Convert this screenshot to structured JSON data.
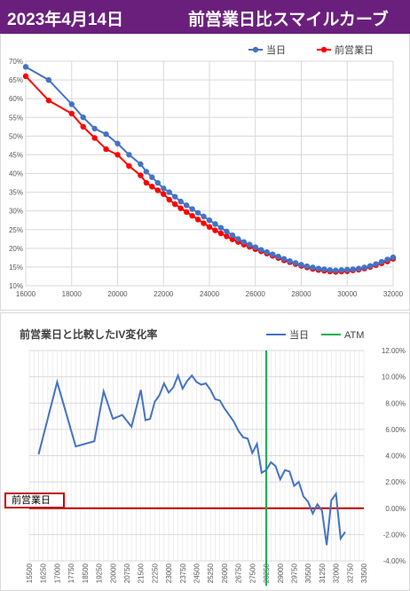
{
  "header": {
    "date": "2023年4月14日",
    "title": "前営業日比スマイルカーブ"
  },
  "colors": {
    "header_bg": "#6b1f7c",
    "today": "#4472c4",
    "prev": "#ff0000",
    "atm": "#00b050",
    "ref": "#c00000"
  },
  "chart_data": [
    {
      "type": "line",
      "title": "",
      "xlim": [
        16000,
        32000
      ],
      "ylim": [
        10,
        70
      ],
      "x_ticks": [
        16000,
        18000,
        20000,
        22000,
        24000,
        26000,
        28000,
        30000,
        32000
      ],
      "x_tick_labels": [
        "16000",
        "18000",
        "20000",
        "22000",
        "24000",
        "26000",
        "28000",
        "30000",
        "32000"
      ],
      "y_ticks": [
        10,
        15,
        20,
        25,
        30,
        35,
        40,
        45,
        50,
        55,
        60,
        65,
        70
      ],
      "y_tick_labels": [
        "10%",
        "15%",
        "20%",
        "25%",
        "30%",
        "35%",
        "40%",
        "45%",
        "50%",
        "55%",
        "60%",
        "65%",
        "70%"
      ],
      "legend": "top-right",
      "grid": true,
      "series": [
        {
          "name": "当日",
          "x": [
            16000,
            17000,
            18000,
            18500,
            19000,
            19500,
            20000,
            20500,
            21000,
            21250,
            21500,
            21750,
            22000,
            22250,
            22500,
            22750,
            23000,
            23250,
            23500,
            23750,
            24000,
            24250,
            24500,
            24750,
            25000,
            25250,
            25500,
            25750,
            26000,
            26250,
            26500,
            26750,
            27000,
            27250,
            27500,
            27750,
            28000,
            28250,
            28500,
            28750,
            29000,
            29250,
            29500,
            29750,
            30000,
            30250,
            30500,
            30750,
            31000,
            31250,
            31500,
            31750,
            32000
          ],
          "values": [
            68.5,
            65,
            58.5,
            55,
            52,
            50.5,
            48,
            45,
            42.5,
            40.5,
            39,
            37.5,
            36,
            35,
            33.8,
            32.5,
            31.5,
            30.5,
            29.5,
            28.5,
            27.5,
            26.5,
            25.5,
            24.5,
            23.5,
            22.5,
            21.7,
            21,
            20.3,
            19.6,
            19,
            18.4,
            17.8,
            17.2,
            16.6,
            16.1,
            15.6,
            15.2,
            14.9,
            14.6,
            14.4,
            14.2,
            14.1,
            14.2,
            14.3,
            14.4,
            14.6,
            14.9,
            15.3,
            15.8,
            16.4,
            17,
            17.6
          ]
        },
        {
          "name": "前営業日",
          "x": [
            16000,
            17000,
            18000,
            18500,
            19000,
            19500,
            20000,
            20500,
            21000,
            21250,
            21500,
            21750,
            22000,
            22250,
            22500,
            22750,
            23000,
            23250,
            23500,
            23750,
            24000,
            24250,
            24500,
            24750,
            25000,
            25250,
            25500,
            25750,
            26000,
            26250,
            26500,
            26750,
            27000,
            27250,
            27500,
            27750,
            28000,
            28250,
            28500,
            28750,
            29000,
            29250,
            29500,
            29750,
            30000,
            30250,
            30500,
            30750,
            31000,
            31250,
            31500,
            31750,
            32000
          ],
          "values": [
            66,
            59.5,
            56,
            52.5,
            49.5,
            46.5,
            45,
            42,
            39.5,
            37.5,
            36.5,
            35.5,
            34.5,
            33,
            31.8,
            30.7,
            29.7,
            28.7,
            27.7,
            26.7,
            25.7,
            24.8,
            24,
            23.2,
            22.4,
            21.7,
            21,
            20.4,
            19.8,
            19.2,
            18.6,
            18,
            17.4,
            16.8,
            16.3,
            15.8,
            15.3,
            14.9,
            14.5,
            14.2,
            14,
            13.8,
            13.7,
            13.8,
            13.9,
            14.1,
            14.3,
            14.6,
            15,
            15.5,
            16,
            16.5,
            17.2
          ]
        }
      ]
    },
    {
      "type": "line",
      "title": "前営業日と比較したIV変化率",
      "legend": "top-right",
      "ylim": [
        -4,
        12
      ],
      "y_ticks": [
        -4,
        -2,
        0,
        2,
        4,
        6,
        8,
        10,
        12
      ],
      "y_tick_labels": [
        "-4.00%",
        "-2.00%",
        "0.00%",
        "2.00%",
        "4.00%",
        "6.00%",
        "8.00%",
        "10.00%",
        "12.00%"
      ],
      "x_tick_labels": [
        "15500",
        "16250",
        "17000",
        "17750",
        "18500",
        "19250",
        "20000",
        "20750",
        "21500",
        "22250",
        "23000",
        "23750",
        "24500",
        "25250",
        "26000",
        "26750",
        "27500",
        "28250",
        "29000",
        "29750",
        "30500",
        "31250",
        "32000",
        "32750",
        "33500"
      ],
      "x_range": [
        15500,
        33500
      ],
      "series": [
        {
          "name": "当日",
          "x": [
            16000,
            17000,
            18000,
            19000,
            19500,
            20000,
            20500,
            21000,
            21500,
            21750,
            22000,
            22250,
            22500,
            22750,
            23000,
            23250,
            23500,
            23750,
            24000,
            24250,
            24500,
            24750,
            25000,
            25250,
            25500,
            25750,
            26000,
            26250,
            26500,
            26750,
            27000,
            27250,
            27500,
            27750,
            28000,
            28250,
            28500,
            28750,
            29000,
            29250,
            29500,
            29750,
            30000,
            30250,
            30500,
            30750,
            31000,
            31250,
            31500,
            31750,
            32000,
            32250,
            32500
          ],
          "values": [
            4.1,
            9.6,
            4.7,
            5.1,
            8.9,
            6.8,
            7.1,
            6.2,
            9.0,
            6.7,
            6.8,
            8.1,
            8.6,
            9.5,
            8.8,
            9.2,
            10.1,
            9.1,
            9.7,
            10.1,
            9.6,
            9.4,
            9.5,
            9.0,
            8.3,
            8.2,
            7.6,
            7.1,
            6.6,
            5.9,
            5.4,
            5.3,
            4.2,
            4.9,
            2.7,
            2.9,
            3.5,
            3.2,
            2.2,
            2.9,
            2.8,
            1.7,
            2.0,
            0.9,
            0.5,
            -0.4,
            0.3,
            -0.2,
            -2.8,
            0.6,
            1.1,
            -2.3,
            -1.8
          ]
        },
        {
          "name": "ATM",
          "x_value": 28250
        },
        {
          "name": "前営業日",
          "value": 0
        }
      ],
      "annotations": [
        "前営業日"
      ]
    }
  ]
}
